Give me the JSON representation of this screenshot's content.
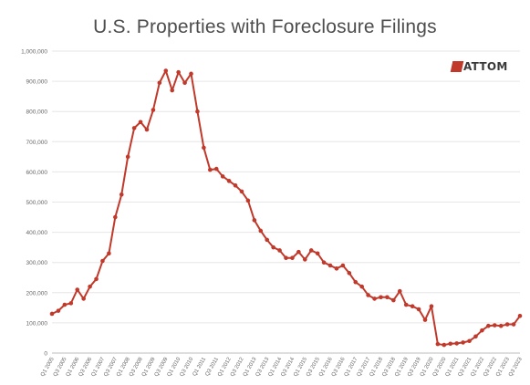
{
  "chart_data": {
    "type": "line",
    "title": "U.S. Properties with Foreclosure Filings",
    "logo_text": "ATTOM",
    "xlabel": "",
    "ylabel": "",
    "ylim": [
      0,
      1000000
    ],
    "yticks": [
      0,
      100000,
      200000,
      300000,
      400000,
      500000,
      600000,
      700000,
      800000,
      900000,
      1000000
    ],
    "ytick_labels": [
      "0",
      "100,000",
      "200,000",
      "300,000",
      "400,000",
      "500,000",
      "600,000",
      "700,000",
      "800,000",
      "900,000",
      "1,000,000"
    ],
    "grid": true,
    "legend": "none",
    "line_color": "#c0392b",
    "x_tick_labels": [
      "Q1 2005",
      "Q3 2005",
      "Q1 2006",
      "Q3 2006",
      "Q1 2007",
      "Q3 2007",
      "Q1 2008",
      "Q3 2008",
      "Q1 2009",
      "Q3 2009",
      "Q1 2010",
      "Q3 2010",
      "Q1 2011",
      "Q3 2011",
      "Q1 2012",
      "Q3 2012",
      "Q1 2013",
      "Q3 2013",
      "Q1 2014",
      "Q3 2014",
      "Q1 2015",
      "Q3 2015",
      "Q1 2016",
      "Q3 2016",
      "Q1 2017",
      "Q3 2017",
      "Q1 2018",
      "Q3 2018",
      "Q1 2019",
      "Q3 2019",
      "Q1 2020",
      "Q3 2020",
      "Q1 2021",
      "Q3 2021",
      "Q1 2022",
      "Q3 2022",
      "Q1 2023",
      "Q3 2023"
    ],
    "x": [
      "Q1 2005",
      "Q2 2005",
      "Q3 2005",
      "Q4 2005",
      "Q1 2006",
      "Q2 2006",
      "Q3 2006",
      "Q4 2006",
      "Q1 2007",
      "Q2 2007",
      "Q3 2007",
      "Q4 2007",
      "Q1 2008",
      "Q2 2008",
      "Q3 2008",
      "Q4 2008",
      "Q1 2009",
      "Q2 2009",
      "Q3 2009",
      "Q4 2009",
      "Q1 2010",
      "Q2 2010",
      "Q3 2010",
      "Q4 2010",
      "Q1 2011",
      "Q2 2011",
      "Q3 2011",
      "Q4 2011",
      "Q1 2012",
      "Q2 2012",
      "Q3 2012",
      "Q4 2012",
      "Q1 2013",
      "Q2 2013",
      "Q3 2013",
      "Q4 2013",
      "Q1 2014",
      "Q2 2014",
      "Q3 2014",
      "Q4 2014",
      "Q1 2015",
      "Q2 2015",
      "Q3 2015",
      "Q4 2015",
      "Q1 2016",
      "Q2 2016",
      "Q3 2016",
      "Q4 2016",
      "Q1 2017",
      "Q2 2017",
      "Q3 2017",
      "Q4 2017",
      "Q1 2018",
      "Q2 2018",
      "Q3 2018",
      "Q4 2018",
      "Q1 2019",
      "Q2 2019",
      "Q3 2019",
      "Q4 2019",
      "Q1 2020",
      "Q2 2020",
      "Q3 2020",
      "Q4 2020",
      "Q1 2021",
      "Q2 2021",
      "Q3 2021",
      "Q4 2021",
      "Q1 2022",
      "Q2 2022",
      "Q3 2022",
      "Q4 2022",
      "Q1 2023",
      "Q2 2023",
      "Q3 2023"
    ],
    "values": [
      130000,
      140000,
      160000,
      165000,
      210000,
      180000,
      220000,
      245000,
      305000,
      330000,
      450000,
      525000,
      650000,
      745000,
      765000,
      740000,
      805000,
      895000,
      935000,
      870000,
      930000,
      895000,
      925000,
      800000,
      680000,
      607000,
      610000,
      585000,
      570000,
      555000,
      535000,
      505000,
      440000,
      405000,
      375000,
      350000,
      340000,
      315000,
      315000,
      335000,
      310000,
      340000,
      330000,
      300000,
      290000,
      280000,
      290000,
      265000,
      235000,
      220000,
      192000,
      180000,
      185000,
      185000,
      175000,
      205000,
      160000,
      155000,
      145000,
      110000,
      155000,
      30000,
      27000,
      31000,
      32000,
      35000,
      40000,
      55000,
      75000,
      90000,
      92000,
      90000,
      95000,
      95000,
      123000
    ]
  }
}
